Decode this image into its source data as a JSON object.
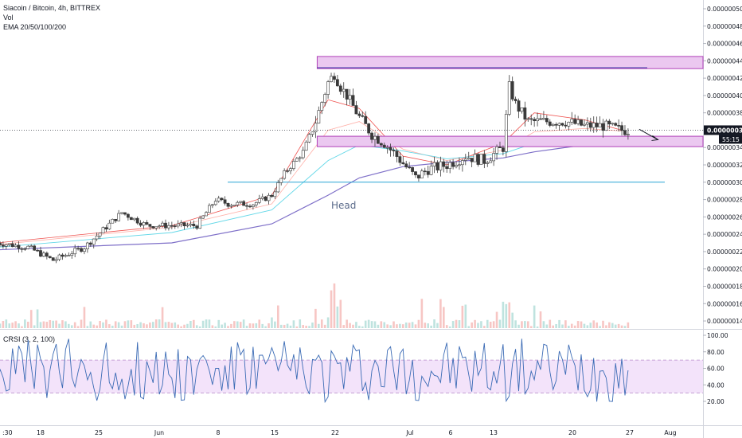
{
  "legend": {
    "symbol": "Siacoin / Bitcoin, 4h, BITTREX",
    "volume": "Vol",
    "ema": "EMA 20/50/100/200"
  },
  "crsi_label": "CRSI (3, 2, 100)",
  "colors": {
    "up": "#26a69a",
    "down": "#ef5350",
    "candle": "#3a3a3a",
    "ema20": "#ef5350",
    "ema50": "#ffb0a8",
    "ema100": "#64d8e8",
    "ema200": "#7e6fc8",
    "zone_fill": "#ebc8f0",
    "zone_stroke": "#b040b8",
    "neckline": "#29a3d6",
    "crsi_line": "#3b6bb5",
    "crsi_band": "#f3e3fa"
  },
  "chart_data": [
    {
      "type": "candlestick",
      "title": "Siacoin / Bitcoin, 4h, BITTREX",
      "price_axis_ticks": [
        "0.00000050",
        "0.00000048",
        "0.00000046",
        "0.00000044",
        "0.00000042",
        "0.00000040",
        "0.00000038",
        "0.00000036",
        "0.00000034",
        "0.00000032",
        "0.00000030",
        "0.00000028",
        "0.00000026",
        "0.00000024",
        "0.00000022",
        "0.00000020",
        "0.00000018",
        "0.00000016",
        "0.00000014"
      ],
      "ylim": [
        1.32e-07,
        5.15e-07
      ],
      "time_axis_labels": [
        ":30",
        "18",
        "25",
        "Jun",
        "8",
        "15",
        "22",
        "Jul",
        "6",
        "13",
        "20",
        "27",
        "Aug"
      ],
      "last_price": "0.00000036",
      "countdown": "55:15",
      "price_path": [
        [
          "Apr 11",
          2.3e-07
        ],
        [
          "Apr 16",
          2.25e-07
        ],
        [
          "Apr 20",
          2.1e-07
        ],
        [
          "Apr 25",
          2.25e-07
        ],
        [
          "Apr 28",
          2.45e-07
        ],
        [
          "May 1",
          2.65e-07
        ],
        [
          "May 5",
          2.5e-07
        ],
        [
          "May 9",
          2.5e-07
        ],
        [
          "May 13",
          2.5e-07
        ],
        [
          "May 16",
          2.8e-07
        ],
        [
          "May 18",
          2.75e-07
        ],
        [
          "May 22",
          2.75e-07
        ],
        [
          "May 25",
          2.85e-07
        ],
        [
          "May 27",
          3.1e-07
        ],
        [
          "May 30",
          3.35e-07
        ],
        [
          "Jun 1",
          3.7e-07
        ],
        [
          "Jun 3",
          4.15e-07
        ],
        [
          "Jun 4",
          4.25e-07
        ],
        [
          "Jun 5",
          4.1e-07
        ],
        [
          "Jun 6",
          4e-07
        ],
        [
          "Jun 8",
          3.75e-07
        ],
        [
          "Jun 10",
          3.55e-07
        ],
        [
          "Jun 12",
          3.45e-07
        ],
        [
          "Jun 14",
          3.3e-07
        ],
        [
          "Jun 17",
          3.05e-07
        ],
        [
          "Jun 19",
          3.15e-07
        ],
        [
          "Jun 22",
          3.2e-07
        ],
        [
          "Jun 25",
          3.3e-07
        ],
        [
          "Jun 28",
          3.25e-07
        ],
        [
          "Jul 1",
          3.4e-07
        ],
        [
          "Jul 2",
          4.1e-07
        ],
        [
          "Jul 3",
          3.9e-07
        ],
        [
          "Jul 5",
          3.7e-07
        ],
        [
          "Jul 8",
          3.7e-07
        ],
        [
          "Jul 11",
          3.7e-07
        ],
        [
          "Jul 14",
          3.65e-07
        ],
        [
          "Jul 17",
          3.65e-07
        ],
        [
          "Jul 20",
          3.6e-07
        ]
      ],
      "ema_series": [
        {
          "name": "EMA 20",
          "points": [
            [
              "Apr 11",
              2.3e-07
            ],
            [
              "May 9",
              2.5e-07
            ],
            [
              "May 25",
              2.85e-07
            ],
            [
              "Jun 3",
              3.95e-07
            ],
            [
              "Jun 8",
              3.85e-07
            ],
            [
              "Jun 15",
              3.3e-07
            ],
            [
              "Jun 22",
              3.2e-07
            ],
            [
              "Jul 1",
              3.45e-07
            ],
            [
              "Jul 6",
              3.8e-07
            ],
            [
              "Jul 14",
              3.72e-07
            ],
            [
              "Jul 20",
              3.6e-07
            ]
          ]
        },
        {
          "name": "EMA 50",
          "points": [
            [
              "Apr 11",
              2.28e-07
            ],
            [
              "May 9",
              2.48e-07
            ],
            [
              "May 25",
              2.75e-07
            ],
            [
              "Jun 3",
              3.6e-07
            ],
            [
              "Jun 8",
              3.7e-07
            ],
            [
              "Jun 15",
              3.38e-07
            ],
            [
              "Jun 22",
              3.25e-07
            ],
            [
              "Jul 1",
              3.37e-07
            ],
            [
              "Jul 6",
              3.58e-07
            ],
            [
              "Jul 14",
              3.62e-07
            ],
            [
              "Jul 20",
              3.59e-07
            ]
          ]
        },
        {
          "name": "EMA 100",
          "points": [
            [
              "Apr 11",
              2.25e-07
            ],
            [
              "May 9",
              2.42e-07
            ],
            [
              "May 25",
              2.68e-07
            ],
            [
              "Jun 3",
              3.25e-07
            ],
            [
              "Jun 8",
              3.43e-07
            ],
            [
              "Jun 15",
              3.36e-07
            ],
            [
              "Jun 22",
              3.27e-07
            ],
            [
              "Jul 1",
              3.33e-07
            ],
            [
              "Jul 6",
              3.45e-07
            ],
            [
              "Jul 14",
              3.52e-07
            ],
            [
              "Jul 20",
              3.53e-07
            ]
          ]
        },
        {
          "name": "EMA 200",
          "points": [
            [
              "Apr 11",
              2.22e-07
            ],
            [
              "May 9",
              2.3e-07
            ],
            [
              "May 25",
              2.52e-07
            ],
            [
              "Jun 3",
              2.85e-07
            ],
            [
              "Jun 8",
              3.05e-07
            ],
            [
              "Jun 15",
              3.18e-07
            ],
            [
              "Jun 22",
              3.23e-07
            ],
            [
              "Jul 1",
              3.28e-07
            ],
            [
              "Jul 6",
              3.35e-07
            ],
            [
              "Jul 14",
              3.43e-07
            ],
            [
              "Jul 20",
              3.48e-07
            ]
          ]
        }
      ],
      "drawings": {
        "resistance_zone": {
          "from": "Jun 1",
          "to": "Jul 25",
          "top": 4.45e-07,
          "bottom": 4.31e-07
        },
        "support_zone": {
          "from": "Jun 1",
          "to": "Jul 25",
          "top": 3.53e-07,
          "bottom": 3.41e-07
        },
        "resistance_line": {
          "from": "Jun 1",
          "to": "Jul 22",
          "price": 4.32e-07
        },
        "neckline": {
          "from": "May 22",
          "to": "Jul 26",
          "price": 3e-07
        },
        "head_label": "Head",
        "arrow": {
          "from": [
            "Jul 21",
            3.61e-07
          ],
          "to": [
            "Jul 24",
            3.49e-07
          ]
        }
      }
    },
    {
      "type": "line",
      "title": "CRSI (3, 2, 100)",
      "y_axis_ticks": [
        "100.00",
        "80.00",
        "60.00",
        "40.00",
        "20.00"
      ],
      "ylim": [
        0,
        105
      ],
      "band": [
        30,
        70
      ],
      "oscillation_range": [
        10,
        98
      ]
    }
  ]
}
